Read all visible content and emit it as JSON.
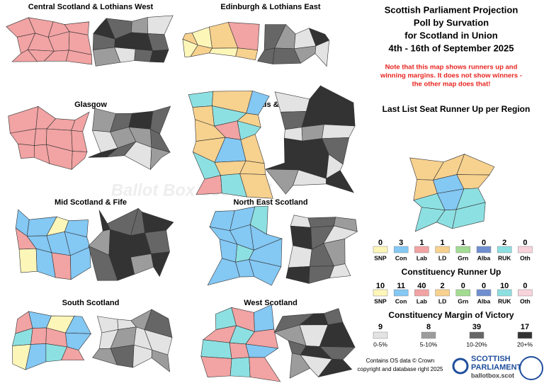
{
  "title_lines": [
    "Scottish Parliament Projection",
    "Poll by Survation",
    "for Scotland in Union",
    "4th - 16th of September 2025"
  ],
  "note_lines": [
    "Note that this map shows runners up and",
    "winning margins. It does not show winners -",
    "the other map does that!"
  ],
  "regions": [
    "Central Scotland & Lothians West",
    "Edinburgh & Lothians East",
    "Glasgow",
    "Highlands & Islands",
    "Mid Scotland & Fife",
    "North East Scotland",
    "South Scotland",
    "West Scotland"
  ],
  "parties": [
    {
      "name": "SNP",
      "color": "#fdf6b9"
    },
    {
      "name": "Con",
      "color": "#84c8f4"
    },
    {
      "name": "Lab",
      "color": "#f2a3a3"
    },
    {
      "name": "LD",
      "color": "#f7d18e"
    },
    {
      "name": "Grn",
      "color": "#a2dc92"
    },
    {
      "name": "Alba",
      "color": "#6f8fd1"
    },
    {
      "name": "RUK",
      "color": "#8de0e2"
    },
    {
      "name": "Oth",
      "color": "#f9d3dc"
    }
  ],
  "list_runner_up": {
    "title": "Last List Seat Runner Up per Region",
    "counts": [
      0,
      3,
      1,
      1,
      1,
      0,
      2,
      0
    ]
  },
  "constituency_runner_up": {
    "title": "Constituency Runner Up",
    "counts": [
      10,
      11,
      40,
      2,
      0,
      0,
      10,
      0
    ]
  },
  "margin": {
    "title": "Constituency Margin of Victory",
    "items": [
      {
        "range": "0-5%",
        "count": 9,
        "color": "#e3e3e3"
      },
      {
        "range": "5-10%",
        "count": 8,
        "color": "#9c9c9c"
      },
      {
        "range": "10-20%",
        "count": 39,
        "color": "#666666"
      },
      {
        "range": "20+%",
        "count": 17,
        "color": "#333333"
      }
    ]
  },
  "credit_lines": [
    "Contains OS data © Crown",
    "copyright and database right 2025"
  ],
  "logo_lines": [
    "SCOTTISH",
    "PARLIAMENT",
    "ballotbox.scot"
  ],
  "watermark": "Ballot Box Scotland"
}
